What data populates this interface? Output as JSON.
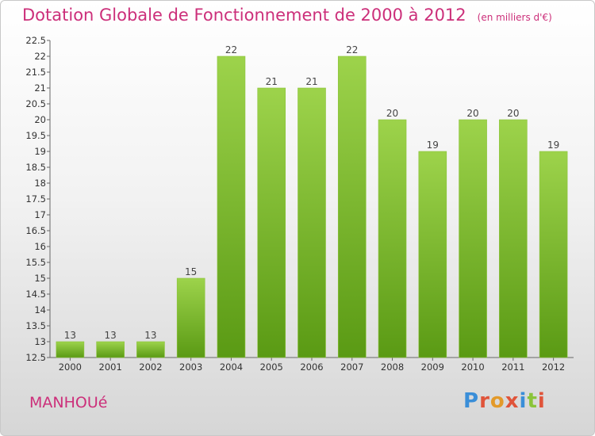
{
  "header": {
    "title": "Dotation Globale de Fonctionnement de 2000 à 2012",
    "unit": "(en milliers d'€)"
  },
  "footer": {
    "commune": "MANHOUé",
    "logo_text": "Proxiti",
    "logo_colors": [
      "#3a8ed8",
      "#e0543a",
      "#e39a2a",
      "#e0543a",
      "#3a8ed8",
      "#8ac43a",
      "#e0543a"
    ]
  },
  "colors": {
    "title": "#cc2f7a",
    "bar_top": "#9dd34b",
    "bar_bottom": "#5a9a14",
    "axis_text": "#333333"
  },
  "chart_data": {
    "type": "bar",
    "title": "Dotation Globale de Fonctionnement de 2000 à 2012",
    "subtitle": "(en milliers d'€)",
    "categories": [
      "2000",
      "2001",
      "2002",
      "2003",
      "2004",
      "2005",
      "2006",
      "2007",
      "2008",
      "2009",
      "2010",
      "2011",
      "2012"
    ],
    "values": [
      13,
      13,
      13,
      15,
      22,
      21,
      21,
      22,
      20,
      19,
      20,
      20,
      19
    ],
    "data_labels": [
      "13",
      "13",
      "13",
      "15",
      "22",
      "21",
      "21",
      "22",
      "20",
      "19",
      "20",
      "20",
      "19"
    ],
    "ylim": [
      12.5,
      22.5
    ],
    "yticks": [
      "12.5",
      "13",
      "13.5",
      "14",
      "14.5",
      "15",
      "15.5",
      "16",
      "16.5",
      "17",
      "17.5",
      "18",
      "18.5",
      "19",
      "19.5",
      "20",
      "20.5",
      "21",
      "21.5",
      "22",
      "22.5"
    ],
    "grid": false,
    "legend": "none"
  }
}
